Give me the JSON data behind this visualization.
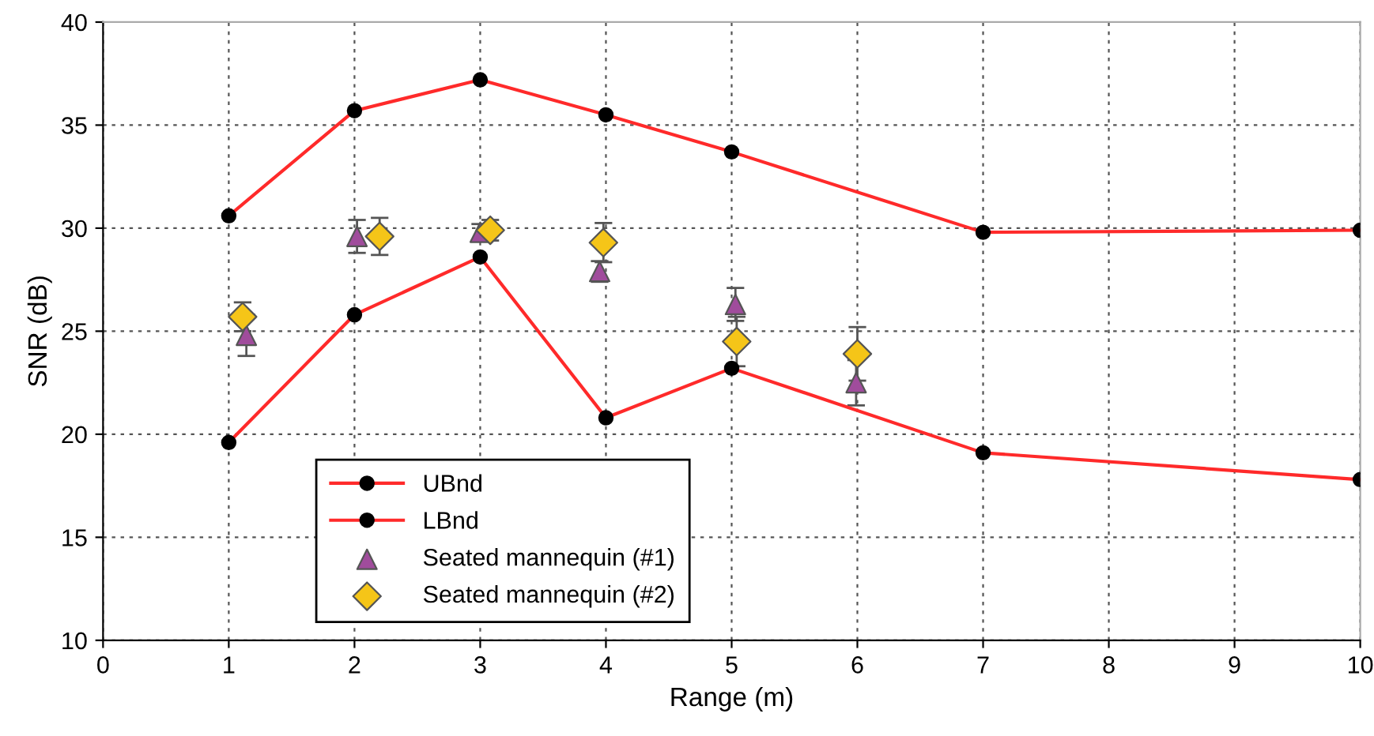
{
  "chart_data": {
    "type": "line",
    "xlabel": "Range (m)",
    "ylabel": "SNR (dB)",
    "xlim": [
      0,
      10
    ],
    "xticks": [
      0,
      1,
      2,
      3,
      4,
      5,
      6,
      7,
      8,
      9,
      10
    ],
    "ylim": [
      10,
      40
    ],
    "yticks": [
      10,
      15,
      20,
      25,
      30,
      35,
      40
    ],
    "grid": true,
    "legend": "bottom left",
    "line_style": "solid",
    "series": [
      {
        "name": "UBnd",
        "color": "#ff2a2a",
        "marker": "circle",
        "x": [
          1,
          2,
          3,
          4,
          5,
          7,
          10
        ],
        "values": [
          30.6,
          35.7,
          37.2,
          35.5,
          33.7,
          29.8,
          29.9
        ]
      },
      {
        "name": "LBnd",
        "color": "#ff2a2a",
        "marker": "circle",
        "x": [
          1,
          2,
          3,
          4,
          5,
          7,
          10
        ],
        "values": [
          19.6,
          25.8,
          28.6,
          20.8,
          23.2,
          19.1,
          17.8
        ]
      },
      {
        "name": "Seated mannequin (#1)",
        "type": "scatter",
        "color": "#a04c9c",
        "marker": "triangle",
        "x": [
          1.14,
          2.02,
          3.0,
          3.95,
          5.03,
          5.99
        ],
        "values": [
          24.8,
          29.6,
          29.8,
          27.9,
          26.3,
          22.5
        ],
        "errors": [
          1.0,
          0.8,
          0.4,
          0.5,
          0.8,
          1.1
        ]
      },
      {
        "name": "Seated mannequin (#2)",
        "type": "scatter",
        "color": "#f5c518",
        "marker": "diamond",
        "x": [
          1.11,
          2.2,
          3.08,
          3.98,
          5.04,
          6.0
        ],
        "values": [
          25.7,
          29.6,
          29.9,
          29.3,
          24.5,
          23.9
        ],
        "errors": [
          0.7,
          0.9,
          0.5,
          0.95,
          1.2,
          1.3
        ]
      }
    ]
  }
}
